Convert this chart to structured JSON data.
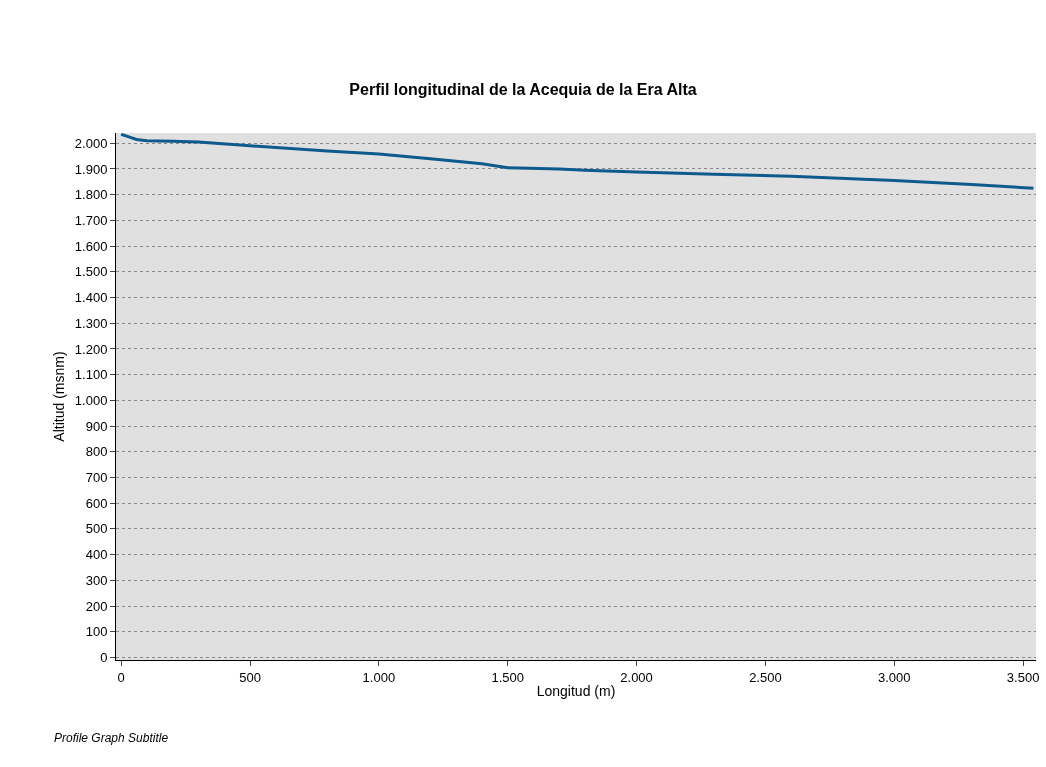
{
  "chart_data": {
    "type": "line",
    "title": "Perfil longitudinal de la Acequia de la Era Alta",
    "xlabel": "Longitud (m)",
    "ylabel": "Altitud (msnm)",
    "annotations": [
      "Profile Graph Subtitle"
    ],
    "x": [
      0,
      30,
      60,
      100,
      200,
      300,
      500,
      800,
      1000,
      1200,
      1400,
      1500,
      1700,
      1800,
      2000,
      2300,
      2600,
      3000,
      3300,
      3540
    ],
    "series": [
      {
        "color": "#0f5a8c",
        "values": [
          2035,
          2025,
          2015,
          2010,
          2008,
          2005,
          1990,
          1970,
          1958,
          1940,
          1920,
          1905,
          1900,
          1895,
          1888,
          1880,
          1872,
          1855,
          1840,
          1825
        ]
      }
    ],
    "xlim": [
      -20,
      3550
    ],
    "ylim": [
      -10,
      2040
    ],
    "xticks": [
      0,
      500,
      {
        "value": 1000,
        "label": "1.000"
      },
      {
        "value": 1500,
        "label": "1.500"
      },
      {
        "value": 2000,
        "label": "2.000"
      },
      {
        "value": 2500,
        "label": "2.500"
      },
      {
        "value": 3000,
        "label": "3.000"
      },
      {
        "value": 3500,
        "label": "3.500"
      }
    ],
    "yticks": [
      0,
      100,
      200,
      300,
      400,
      500,
      600,
      700,
      800,
      900,
      {
        "value": 1000,
        "label": "1.000"
      },
      {
        "value": 1100,
        "label": "1.100"
      },
      {
        "value": 1200,
        "label": "1.200"
      },
      {
        "value": 1300,
        "label": "1.300"
      },
      {
        "value": 1400,
        "label": "1.400"
      },
      {
        "value": 1500,
        "label": "1.500"
      },
      {
        "value": 1600,
        "label": "1.600"
      },
      {
        "value": 1700,
        "label": "1.700"
      },
      {
        "value": 1800,
        "label": "1.800"
      },
      {
        "value": 1900,
        "label": "1.900"
      },
      {
        "value": 2000,
        "label": "2.000"
      }
    ],
    "grid": "y",
    "line_style": "solid",
    "marker": "none"
  }
}
